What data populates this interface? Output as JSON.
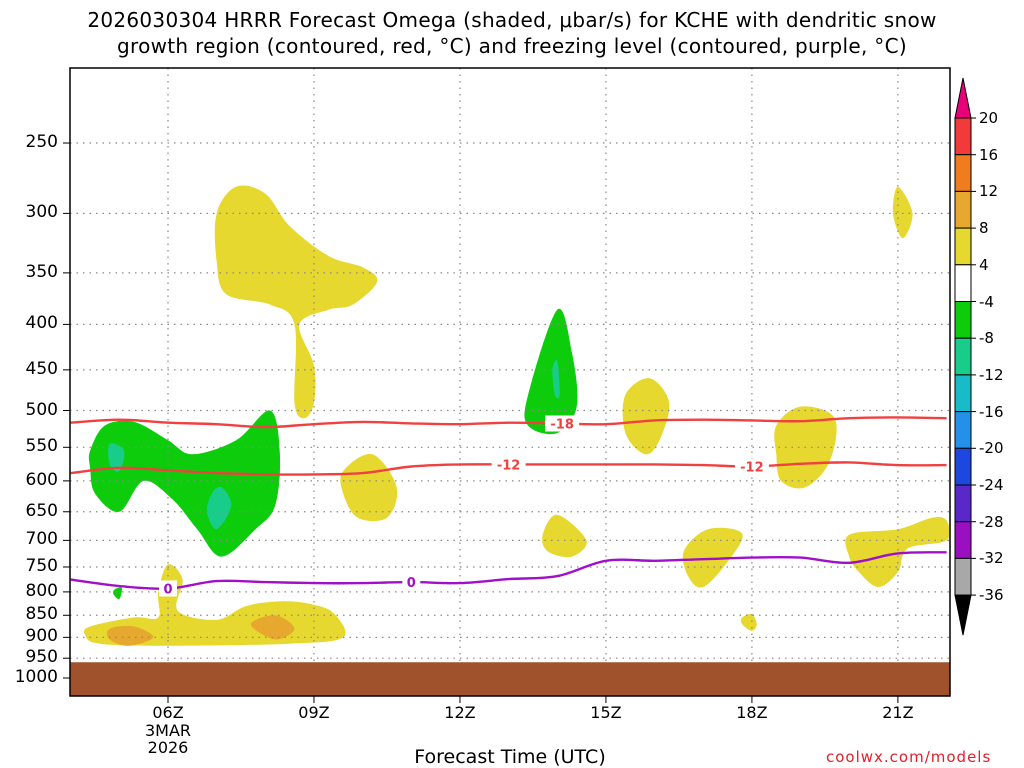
{
  "title_line1": "2026030304 HRRR Forecast Omega (shaded, μbar/s) for KCHE with dendritic snow",
  "title_line2": "growth region (contoured, red, °C) and freezing level (contoured, purple, °C)",
  "xlabel": "Forecast Time (UTC)",
  "credit": "coolwx.com/models",
  "x_ticks": [
    {
      "label": "06Z",
      "hour": 6
    },
    {
      "label": "09Z",
      "hour": 9
    },
    {
      "label": "12Z",
      "hour": 12
    },
    {
      "label": "15Z",
      "hour": 15
    },
    {
      "label": "18Z",
      "hour": 18
    },
    {
      "label": "21Z",
      "hour": 21
    }
  ],
  "date_label": {
    "line1": "3MAR",
    "line2": "2026"
  },
  "y_ticks": [
    250,
    300,
    350,
    400,
    450,
    500,
    550,
    600,
    650,
    700,
    750,
    800,
    850,
    900,
    950,
    1000
  ],
  "colorbar": {
    "labels": [
      "20",
      "16",
      "12",
      "8",
      "4",
      "-4",
      "-8",
      "-12",
      "-16",
      "-20",
      "-24",
      "-28",
      "-32",
      "-36"
    ],
    "colors": [
      "#e8007a",
      "#f23a3a",
      "#f07c20",
      "#e6a82e",
      "#e6d82e",
      "#ffffff",
      "#0ccc0c",
      "#18cc8a",
      "#18bcc8",
      "#2490e8",
      "#1c48e0",
      "#5a28c8",
      "#9a10c0",
      "#a8a8a8",
      "#000000"
    ]
  },
  "chart_data": {
    "type": "heatmap",
    "title": "2026030304 HRRR Forecast Omega (shaded, μbar/s) for KCHE with dendritic snow growth region (contoured, red, °C) and freezing level (contoured, purple, °C)",
    "xlabel": "Forecast Time (UTC)",
    "ylabel": "",
    "x_unit": "hour UTC, 3 MAR 2026",
    "xlim": [
      4,
      22
    ],
    "ylim": [
      1000,
      200
    ],
    "y_scale": "log-pressure (hPa)",
    "grid": true,
    "ground_below_hpa": 960,
    "contours": [
      {
        "label": "-12",
        "color": "#f04040",
        "points": [
          [
            4.0,
            588
          ],
          [
            5.0,
            580
          ],
          [
            6.0,
            584
          ],
          [
            7.0,
            588
          ],
          [
            8.0,
            590
          ],
          [
            9.0,
            590
          ],
          [
            10.0,
            588
          ],
          [
            11.0,
            578
          ],
          [
            12.0,
            575
          ],
          [
            13.0,
            575
          ],
          [
            14.0,
            575
          ],
          [
            15.0,
            575
          ],
          [
            16.0,
            575
          ],
          [
            17.0,
            576
          ],
          [
            18.0,
            578
          ],
          [
            19.0,
            574
          ],
          [
            20.0,
            572
          ],
          [
            21.0,
            576
          ],
          [
            22.0,
            576
          ]
        ],
        "labels_at_hour": [
          13.0,
          18.0
        ]
      },
      {
        "label": "-18",
        "color": "#f04040",
        "points": [
          [
            4.0,
            516
          ],
          [
            5.0,
            512
          ],
          [
            6.0,
            516
          ],
          [
            7.0,
            518
          ],
          [
            8.0,
            522
          ],
          [
            9.0,
            518
          ],
          [
            10.0,
            515
          ],
          [
            11.0,
            517
          ],
          [
            12.0,
            518
          ],
          [
            13.0,
            516
          ],
          [
            14.0,
            517
          ],
          [
            15.0,
            518
          ],
          [
            16.0,
            513
          ],
          [
            17.0,
            512
          ],
          [
            18.0,
            513
          ],
          [
            19.0,
            514
          ],
          [
            20.0,
            510
          ],
          [
            21.0,
            509
          ],
          [
            22.0,
            510
          ]
        ],
        "labels_at_hour": [
          14.1
        ]
      },
      {
        "label": "0",
        "color": "#a010c8",
        "points": [
          [
            4.0,
            775
          ],
          [
            5.0,
            788
          ],
          [
            6.0,
            793
          ],
          [
            7.0,
            778
          ],
          [
            8.0,
            780
          ],
          [
            9.0,
            782
          ],
          [
            10.0,
            782
          ],
          [
            11.0,
            780
          ],
          [
            12.0,
            782
          ],
          [
            13.0,
            774
          ],
          [
            14.0,
            768
          ],
          [
            15.0,
            738
          ],
          [
            16.0,
            738
          ],
          [
            17.0,
            735
          ],
          [
            18.0,
            732
          ],
          [
            19.0,
            732
          ],
          [
            20.0,
            742
          ],
          [
            21.0,
            724
          ],
          [
            22.0,
            722
          ]
        ],
        "labels_at_hour": [
          6.0,
          11.0
        ]
      }
    ],
    "shaded_regions": [
      {
        "name": "upward -8 to -4",
        "color": "#0ccc0c",
        "points": [
          [
            4.4,
            555
          ],
          [
            4.7,
            520
          ],
          [
            5.3,
            515
          ],
          [
            6.0,
            540
          ],
          [
            6.5,
            560
          ],
          [
            7.4,
            540
          ],
          [
            8.1,
            500
          ],
          [
            8.3,
            560
          ],
          [
            8.2,
            640
          ],
          [
            7.8,
            680
          ],
          [
            7.1,
            730
          ],
          [
            6.6,
            680
          ],
          [
            6.1,
            630
          ],
          [
            5.5,
            600
          ],
          [
            5.0,
            650
          ],
          [
            4.5,
            620
          ],
          [
            4.4,
            580
          ]
        ]
      },
      {
        "name": "upward -12 to -8",
        "color": "#18cc8a",
        "points": [
          [
            4.8,
            545
          ],
          [
            5.1,
            555
          ],
          [
            5.0,
            585
          ],
          [
            4.8,
            575
          ]
        ]
      },
      {
        "name": "upward -12 to -8",
        "color": "#18cc8a",
        "points": [
          [
            6.9,
            620
          ],
          [
            7.1,
            610
          ],
          [
            7.3,
            640
          ],
          [
            7.0,
            680
          ],
          [
            6.8,
            650
          ]
        ]
      },
      {
        "name": "upward -8 to -4",
        "color": "#0ccc0c",
        "points": [
          [
            4.9,
            795
          ],
          [
            5.05,
            792
          ],
          [
            5.0,
            815
          ],
          [
            4.88,
            805
          ]
        ]
      },
      {
        "name": "upward -8 to -4",
        "color": "#0ccc0c",
        "points": [
          [
            13.4,
            480
          ],
          [
            14.0,
            385
          ],
          [
            14.3,
            430
          ],
          [
            14.4,
            495
          ],
          [
            14.0,
            530
          ],
          [
            13.4,
            520
          ]
        ]
      },
      {
        "name": "upward -12 to -8",
        "color": "#18cc8a",
        "points": [
          [
            13.9,
            450
          ],
          [
            14.0,
            440
          ],
          [
            14.05,
            480
          ],
          [
            13.95,
            480
          ]
        ]
      },
      {
        "name": "downward 4 to 8",
        "color": "#e6d82e",
        "points": [
          [
            7.0,
            300
          ],
          [
            7.4,
            280
          ],
          [
            8.0,
            285
          ],
          [
            8.5,
            310
          ],
          [
            9.3,
            335
          ],
          [
            10.0,
            345
          ],
          [
            10.3,
            358
          ],
          [
            9.8,
            380
          ],
          [
            9.3,
            385
          ],
          [
            8.7,
            400
          ],
          [
            9.0,
            445
          ],
          [
            9.0,
            490
          ],
          [
            8.8,
            510
          ],
          [
            8.6,
            490
          ],
          [
            8.6,
            400
          ],
          [
            8.1,
            380
          ],
          [
            7.2,
            370
          ],
          [
            7.0,
            340
          ]
        ]
      },
      {
        "name": "downward 4 to 8",
        "color": "#e6d82e",
        "points": [
          [
            21.0,
            280
          ],
          [
            21.3,
            300
          ],
          [
            21.1,
            320
          ],
          [
            20.9,
            300
          ]
        ]
      },
      {
        "name": "downward 4 to 8",
        "color": "#e6d82e",
        "points": [
          [
            15.4,
            480
          ],
          [
            15.9,
            460
          ],
          [
            16.3,
            490
          ],
          [
            16.1,
            540
          ],
          [
            15.8,
            560
          ],
          [
            15.4,
            530
          ]
        ]
      },
      {
        "name": "downward 4 to 8",
        "color": "#e6d82e",
        "points": [
          [
            18.5,
            520
          ],
          [
            19.0,
            495
          ],
          [
            19.7,
            510
          ],
          [
            19.6,
            570
          ],
          [
            19.1,
            610
          ],
          [
            18.6,
            600
          ],
          [
            18.5,
            560
          ]
        ]
      },
      {
        "name": "downward 4 to 8",
        "color": "#e6d82e",
        "points": [
          [
            9.6,
            585
          ],
          [
            10.2,
            560
          ],
          [
            10.7,
            610
          ],
          [
            10.5,
            660
          ],
          [
            9.9,
            660
          ],
          [
            9.6,
            620
          ]
        ]
      },
      {
        "name": "downward 4 to 8",
        "color": "#e6d82e",
        "points": [
          [
            13.7,
            690
          ],
          [
            14.0,
            655
          ],
          [
            14.6,
            700
          ],
          [
            14.3,
            730
          ],
          [
            13.8,
            720
          ]
        ]
      },
      {
        "name": "downward 4 to 8",
        "color": "#e6d82e",
        "points": [
          [
            16.6,
            720
          ],
          [
            17.1,
            680
          ],
          [
            17.8,
            688
          ],
          [
            17.5,
            740
          ],
          [
            17.0,
            790
          ],
          [
            16.7,
            770
          ]
        ]
      },
      {
        "name": "downward 4 to 8",
        "color": "#e6d82e",
        "points": [
          [
            20.0,
            690
          ],
          [
            21.0,
            680
          ],
          [
            21.7,
            660
          ],
          [
            22.0,
            665
          ],
          [
            22.0,
            700
          ],
          [
            21.2,
            715
          ],
          [
            21.0,
            760
          ],
          [
            20.6,
            790
          ],
          [
            20.2,
            760
          ],
          [
            20.0,
            730
          ]
        ]
      },
      {
        "name": "downward 4 to 8",
        "color": "#e6d82e",
        "points": [
          [
            17.8,
            855
          ],
          [
            18.0,
            848
          ],
          [
            18.1,
            870
          ],
          [
            18.0,
            885
          ],
          [
            17.8,
            870
          ]
        ]
      },
      {
        "name": "downward 4 to 8",
        "color": "#e6d82e",
        "points": [
          [
            4.4,
            875
          ],
          [
            5.3,
            855
          ],
          [
            5.8,
            855
          ],
          [
            5.8,
            800
          ],
          [
            6.0,
            745
          ],
          [
            6.3,
            775
          ],
          [
            6.2,
            840
          ],
          [
            7.0,
            860
          ],
          [
            7.6,
            830
          ],
          [
            8.3,
            820
          ],
          [
            8.9,
            825
          ],
          [
            9.4,
            845
          ],
          [
            9.6,
            900
          ],
          [
            8.5,
            915
          ],
          [
            6.0,
            920
          ],
          [
            4.6,
            915
          ],
          [
            4.3,
            895
          ]
        ]
      },
      {
        "name": "downward 8 to 12",
        "color": "#e6a82e",
        "points": [
          [
            4.8,
            880
          ],
          [
            5.3,
            875
          ],
          [
            5.7,
            900
          ],
          [
            5.2,
            920
          ],
          [
            4.8,
            905
          ]
        ]
      },
      {
        "name": "downward 8 to 12",
        "color": "#e6a82e",
        "points": [
          [
            7.7,
            870
          ],
          [
            8.2,
            850
          ],
          [
            8.6,
            880
          ],
          [
            8.2,
            905
          ]
        ]
      }
    ]
  }
}
